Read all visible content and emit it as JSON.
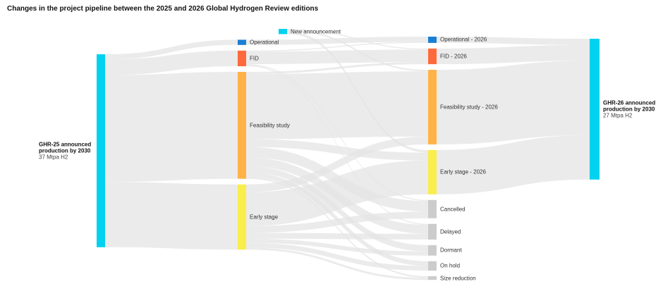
{
  "chart_data": {
    "type": "sankey",
    "title": "Changes in the project pipeline between the 2025 and 2026 Global Hydrogen Review editions",
    "nodes": [
      {
        "name": "GHR-25 announced production by 2030",
        "sublabel": "37 Mtpa H2",
        "color": "#00d2f0"
      },
      {
        "name": "New announcement",
        "color": "#00d2f0"
      },
      {
        "name": "Operational",
        "color": "#1a7fd4"
      },
      {
        "name": "FID",
        "color": "#ff6a3d"
      },
      {
        "name": "Feasibility study",
        "color": "#ffb347"
      },
      {
        "name": "Early stage",
        "color": "#f9ee4c"
      },
      {
        "name": "Operational - 2026",
        "color": "#1a7fd4"
      },
      {
        "name": "FID - 2026",
        "color": "#ff6a3d"
      },
      {
        "name": "Feasibility study - 2026",
        "color": "#ffb347"
      },
      {
        "name": "Early stage - 2026",
        "color": "#f9ee4c"
      },
      {
        "name": "Cancelled",
        "color": "#cccccc"
      },
      {
        "name": "Delayed",
        "color": "#cccccc"
      },
      {
        "name": "Dormant",
        "color": "#cccccc"
      },
      {
        "name": "On hold",
        "color": "#cccccc"
      },
      {
        "name": "Size reduction",
        "color": "#cccccc"
      },
      {
        "name": "GHR-26 announced production by 2030",
        "sublabel": "27 Mtpa H2",
        "color": "#00d2f0"
      }
    ],
    "links": [
      {
        "source": 0,
        "target": 2,
        "value": 1
      },
      {
        "source": 0,
        "target": 3,
        "value": 3
      },
      {
        "source": 0,
        "target": 4,
        "value": 20.5
      },
      {
        "source": 0,
        "target": 5,
        "value": 12.5
      },
      {
        "source": 1,
        "target": 7,
        "value": 0.2
      },
      {
        "source": 1,
        "target": 8,
        "value": 0.3
      },
      {
        "source": 1,
        "target": 9,
        "value": 0.5
      },
      {
        "source": 2,
        "target": 6,
        "value": 1
      },
      {
        "source": 3,
        "target": 6,
        "value": 0.2
      },
      {
        "source": 3,
        "target": 7,
        "value": 2.4
      },
      {
        "source": 3,
        "target": 10,
        "value": 0.2
      },
      {
        "source": 3,
        "target": 11,
        "value": 0.2
      },
      {
        "source": 4,
        "target": 7,
        "value": 0.4
      },
      {
        "source": 4,
        "target": 8,
        "value": 12.5
      },
      {
        "source": 4,
        "target": 9,
        "value": 1.5
      },
      {
        "source": 4,
        "target": 10,
        "value": 2
      },
      {
        "source": 4,
        "target": 11,
        "value": 1.7
      },
      {
        "source": 4,
        "target": 12,
        "value": 1.2
      },
      {
        "source": 4,
        "target": 13,
        "value": 0.9
      },
      {
        "source": 4,
        "target": 14,
        "value": 0.3
      },
      {
        "source": 5,
        "target": 8,
        "value": 1.5
      },
      {
        "source": 5,
        "target": 9,
        "value": 6.5
      },
      {
        "source": 5,
        "target": 10,
        "value": 1.3
      },
      {
        "source": 5,
        "target": 11,
        "value": 1.1
      },
      {
        "source": 5,
        "target": 12,
        "value": 0.8
      },
      {
        "source": 5,
        "target": 13,
        "value": 0.9
      },
      {
        "source": 5,
        "target": 14,
        "value": 0.4
      },
      {
        "source": 6,
        "target": 15,
        "value": 1.2
      },
      {
        "source": 7,
        "target": 15,
        "value": 3
      },
      {
        "source": 8,
        "target": 15,
        "value": 14.3
      },
      {
        "source": 9,
        "target": 15,
        "value": 8.5
      }
    ]
  }
}
